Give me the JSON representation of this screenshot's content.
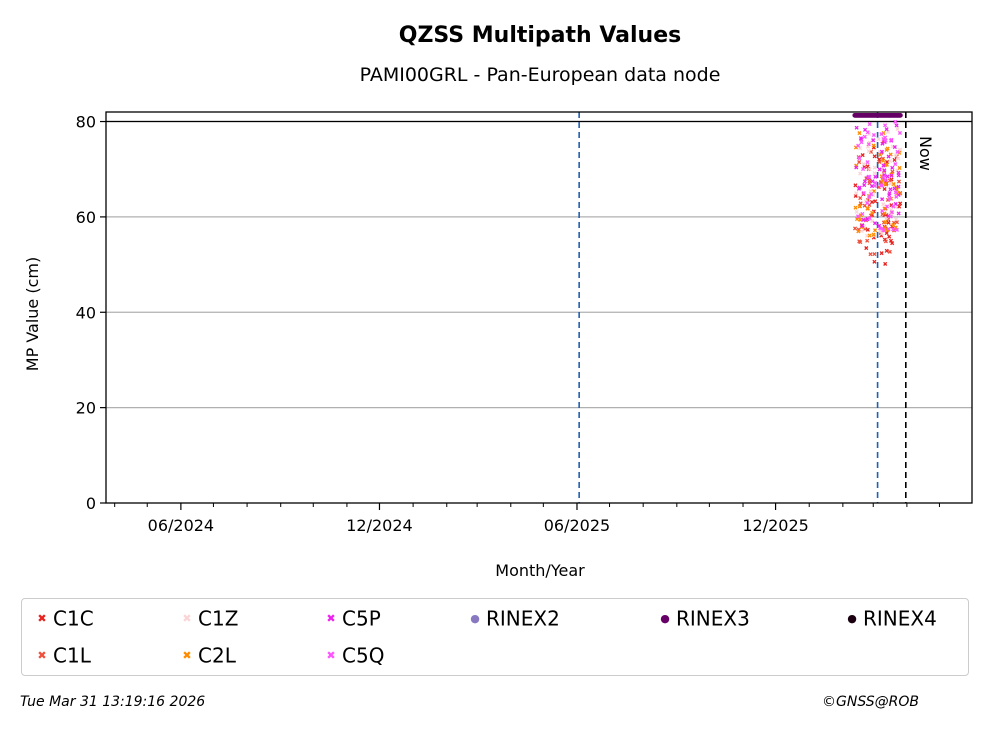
{
  "chart_data": {
    "type": "scatter",
    "title": "QZSS Multipath Values",
    "subtitle": "PAMI00GRL - Pan-European data node",
    "xlabel": "Month/Year",
    "ylabel": "MP Value (cm)",
    "xlim": [
      "2024-03-24",
      "2026-05-31"
    ],
    "ylim": [
      0,
      82
    ],
    "y_ticks": [
      0,
      20,
      40,
      60,
      80
    ],
    "x_ticks": [
      {
        "date": "2024-06-01",
        "label": "06/2024"
      },
      {
        "date": "2024-12-01",
        "label": "12/2024"
      },
      {
        "date": "2025-06-01",
        "label": "06/2025"
      },
      {
        "date": "2025-12-01",
        "label": "12/2025"
      }
    ],
    "grid": "horizontal",
    "reference_line_y": 80,
    "vertical_lines": [
      {
        "date": "2025-06-03",
        "color": "#1f5fb4",
        "style": "dashed"
      },
      {
        "date": "2026-03-05",
        "color": "#1f5fb4",
        "style": "dashed"
      },
      {
        "date": "2026-03-31",
        "color": "#000000",
        "style": "dashed",
        "label": "Now"
      }
    ],
    "data_range": [
      "2026-02-12",
      "2026-03-26"
    ],
    "series": [
      {
        "name": "C1C",
        "color": "#e8221f",
        "marker": "x",
        "y_range": [
          50,
          76
        ]
      },
      {
        "name": "C1L",
        "color": "#f0503c",
        "marker": "x",
        "y_range": [
          52,
          74
        ]
      },
      {
        "name": "C1Z",
        "color": "#fbd5d5",
        "marker": "x",
        "y_range": [
          55,
          79
        ]
      },
      {
        "name": "C2L",
        "color": "#ff8c00",
        "marker": "x",
        "y_range": [
          56,
          78
        ]
      },
      {
        "name": "C5P",
        "color": "#ee22ee",
        "marker": "x",
        "y_range": [
          58,
          80
        ]
      },
      {
        "name": "C5Q",
        "color": "#ff55ff",
        "marker": "x",
        "y_range": [
          57,
          80
        ]
      },
      {
        "name": "RINEX2",
        "color": "#8878c0",
        "marker": "o"
      },
      {
        "name": "RINEX3",
        "color": "#660066",
        "marker": "o",
        "y_value": 81.3
      },
      {
        "name": "RINEX4",
        "color": "#1a0010",
        "marker": "o"
      }
    ],
    "legend_position": "bottom"
  },
  "footer": {
    "timestamp": "Tue Mar 31 13:19:16 2026",
    "credit": "©GNSS@ROB"
  }
}
